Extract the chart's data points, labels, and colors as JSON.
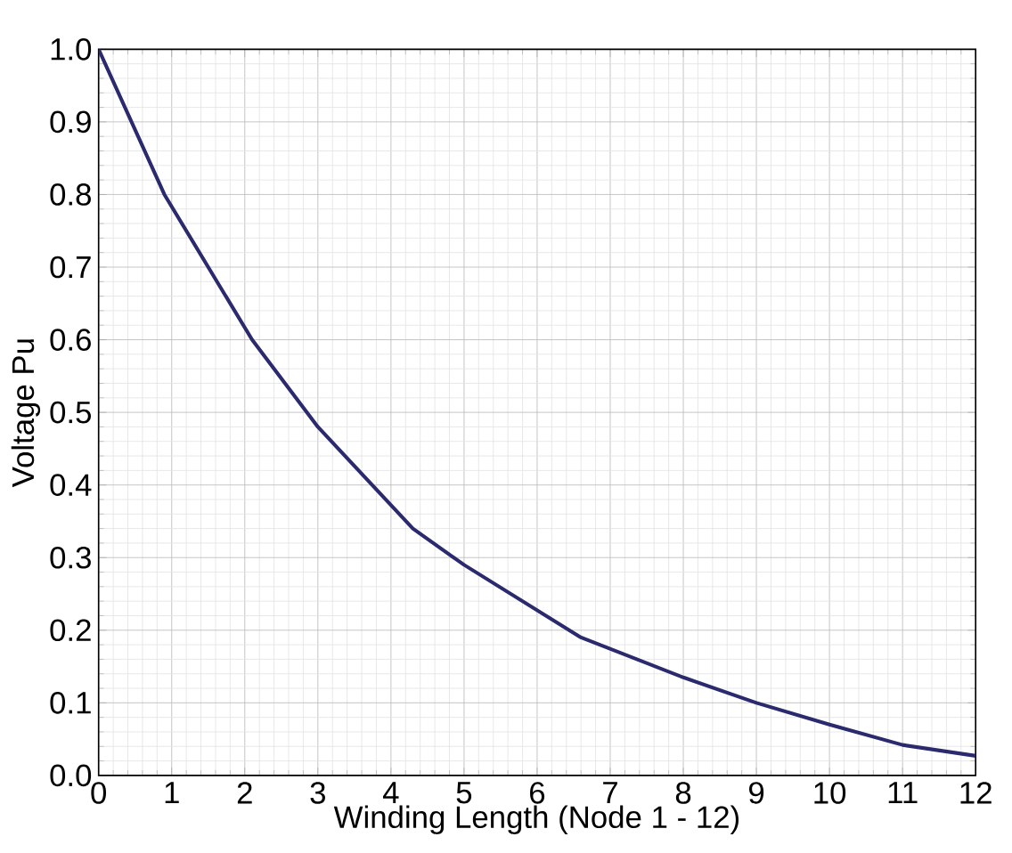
{
  "chart_data": {
    "type": "line",
    "xlabel": "Winding Length (Node 1 - 12)",
    "ylabel": "Voltage Pu",
    "x": [
      0,
      0.9,
      2.1,
      3,
      4.3,
      5,
      6.6,
      8,
      9,
      10,
      11,
      12
    ],
    "series": [
      {
        "color": "#2b2a6e",
        "values": [
          1.0,
          0.8,
          0.6,
          0.48,
          0.34,
          0.29,
          0.19,
          0.135,
          0.1,
          0.07,
          0.042,
          0.027
        ]
      }
    ],
    "xlim": [
      0,
      12
    ],
    "ylim": [
      0,
      1.0
    ],
    "xticks": [
      0,
      1,
      2,
      3,
      4,
      5,
      6,
      7,
      8,
      9,
      10,
      11,
      12
    ],
    "yticks": [
      {
        "value": 0,
        "label": "0.0"
      },
      0.1,
      0.2,
      0.3,
      0.4,
      0.5,
      0.6,
      0.7,
      0.8,
      0.9,
      {
        "value": 1,
        "label": "1.0"
      }
    ],
    "grid": true,
    "marker": "none",
    "line_style": "solid"
  }
}
